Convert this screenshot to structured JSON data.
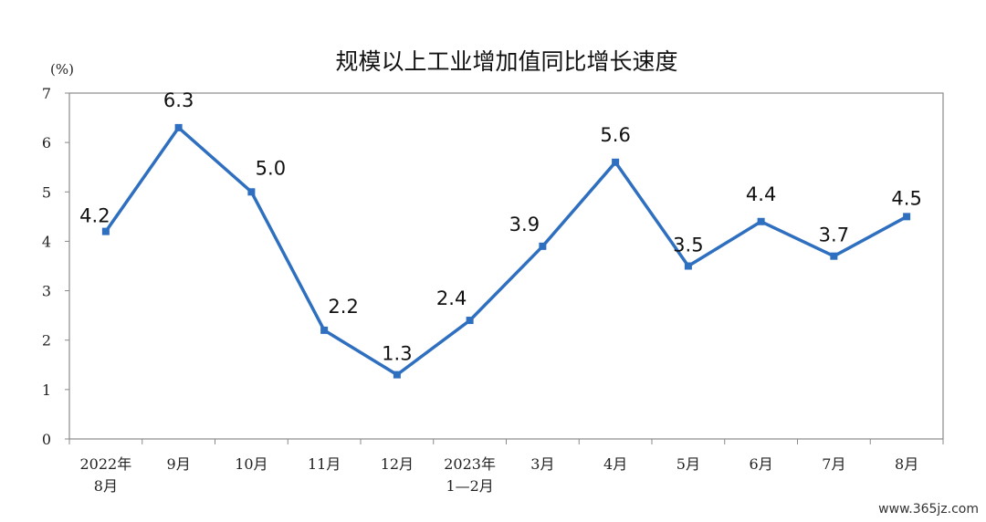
{
  "chart_data": {
    "type": "line",
    "title": "规模以上工业增加值同比增长速度",
    "ylabel": "(%)",
    "ylim": [
      0,
      7
    ],
    "yticks": [
      "0",
      "1",
      "2",
      "3",
      "4",
      "5",
      "6",
      "7"
    ],
    "categories": [
      [
        "2022年",
        "8月"
      ],
      [
        "9月"
      ],
      [
        "10月"
      ],
      [
        "11月"
      ],
      [
        "12月"
      ],
      [
        "2023年",
        "1—2月"
      ],
      [
        "3月"
      ],
      [
        "4月"
      ],
      [
        "5月"
      ],
      [
        "6月"
      ],
      [
        "7月"
      ],
      [
        "8月"
      ]
    ],
    "values": [
      4.2,
      6.3,
      5.0,
      2.2,
      1.3,
      2.4,
      3.9,
      5.6,
      3.5,
      4.4,
      3.7,
      4.5
    ],
    "value_labels": [
      "4.2",
      "6.3",
      "5.0",
      "2.2",
      "1.3",
      "2.4",
      "3.9",
      "5.6",
      "3.5",
      "4.4",
      "3.7",
      "4.5"
    ],
    "grid": false,
    "line_color": "#2f6fc0"
  },
  "watermark": "www.365jz.com"
}
